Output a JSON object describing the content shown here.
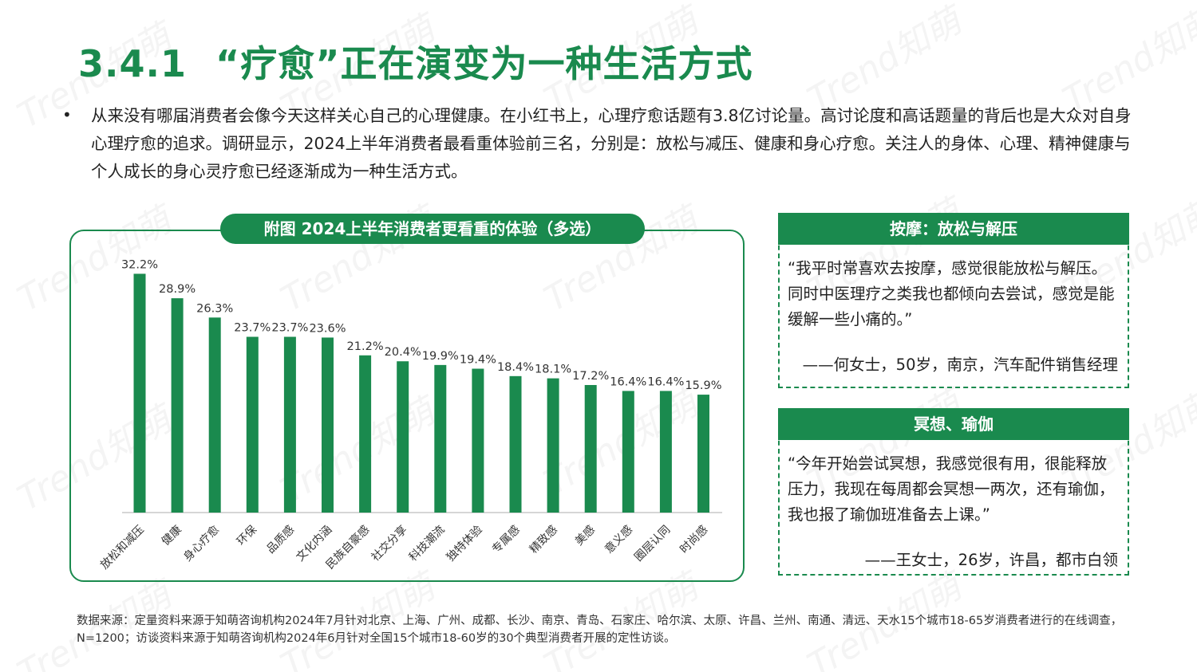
{
  "title": {
    "number": "3.4.1",
    "text": "“疗愈”正在演变为一种生活方式"
  },
  "bullet": {
    "symbol": "•",
    "text": "从来没有哪届消费者会像今天这样关心自己的心理健康。在小红书上，心理疗愈话题有3.8亿讨论量。高讨论度和高话题量的背后也是大众对自身心理疗愈的追求。调研显示，2024上半年消费者最看重体验前三名，分别是：放松与减压、健康和身心疗愈。关注人的身体、心理、精神健康与个人成长的身心灵疗愈已经逐渐成为一种生活方式。"
  },
  "chart_title": "附图  2024上半年消费者更看重的体验（多选）",
  "chart_data": {
    "type": "bar",
    "categories": [
      "放松和减压",
      "健康",
      "身心疗愈",
      "环保",
      "品质感",
      "文化内涵",
      "民族自豪感",
      "社交分享",
      "科技潮流",
      "独特体验",
      "专属感",
      "精致感",
      "美感",
      "意义感",
      "圈层认同",
      "时尚感"
    ],
    "values": [
      32.2,
      28.9,
      26.3,
      23.7,
      23.7,
      23.6,
      21.2,
      20.4,
      19.9,
      19.4,
      18.4,
      18.1,
      17.2,
      16.4,
      16.4,
      15.9
    ],
    "value_labels": [
      "32.2%",
      "28.9%",
      "26.3%",
      "23.7%",
      "23.7%",
      "23.6%",
      "21.2%",
      "20.4%",
      "19.9%",
      "19.4%",
      "18.4%",
      "18.1%",
      "17.2%",
      "16.4%",
      "16.4%",
      "15.9%"
    ],
    "ylim": [
      0,
      33
    ],
    "grid": false,
    "bar_color": "#1a8a4e",
    "title": "",
    "xlabel": "",
    "ylabel": ""
  },
  "quotes": [
    {
      "header": "按摩：放松与解压",
      "text": "“我平时常喜欢去按摩，感觉很能放松与解压。同时中医理疗之类我也都倾向去尝试，感觉是能缓解一些小痛的。”",
      "signature": "——何女士，50岁，南京，汽车配件销售经理"
    },
    {
      "header": "冥想、瑜伽",
      "text": "“今年开始尝试冥想，我感觉很有用，很能释放压力，我现在每周都会冥想一两次，还有瑜伽，我也报了瑜伽班准备去上课。”",
      "signature": "——王女士，26岁，许昌，都市白领"
    }
  ],
  "source": "数据来源：定量资料来源于知萌咨询机构2024年7月针对北京、上海、广州、成都、长沙、南京、青岛、石家庄、哈尔滨、太原、许昌、兰州、南通、清远、天水15个城市18-65岁消费者进行的在线调查，N=1200；访谈资料来源于知萌咨询机构2024年6月针对全国15个城市18-60岁的30个典型消费者开展的定性访谈。",
  "watermark": "Trend知萌",
  "colors": {
    "accent": "#1a8a4e"
  }
}
